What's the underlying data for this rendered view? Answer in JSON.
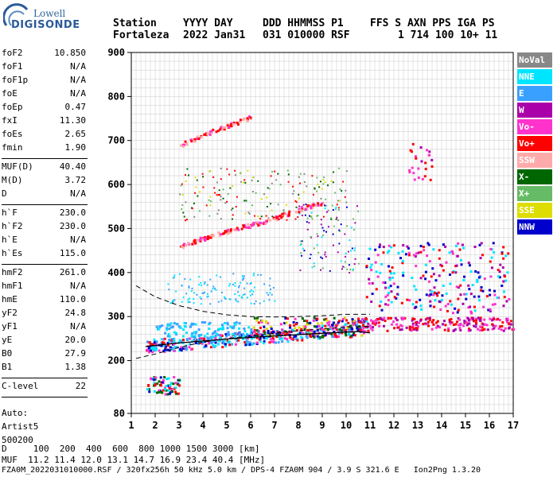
{
  "logo": {
    "line1": "Lowell",
    "line2": "DIGISONDE"
  },
  "header": {
    "labels": [
      "Station",
      "YYYY DAY",
      "DDD HHMMSS P1",
      "FFS S AXN PPS IGA PS"
    ],
    "values": [
      "Fortaleza",
      "2022 Jan31",
      "031 010000 RSF",
      "1 714 100 10+ 11"
    ]
  },
  "params_a": [
    {
      "k": "foF2",
      "v": "10.850"
    },
    {
      "k": "foF1",
      "v": "N/A"
    },
    {
      "k": "foF1p",
      "v": "N/A"
    },
    {
      "k": "foE",
      "v": "N/A"
    },
    {
      "k": "foEp",
      "v": "0.47"
    },
    {
      "k": "fxI",
      "v": "11.30"
    },
    {
      "k": "foEs",
      "v": "2.65"
    },
    {
      "k": "fmin",
      "v": "1.90"
    }
  ],
  "params_b": [
    {
      "k": "MUF(D)",
      "v": "40.40"
    },
    {
      "k": "M(D)",
      "v": "3.72"
    },
    {
      "k": "D",
      "v": "N/A"
    }
  ],
  "params_c": [
    {
      "k": "h`F",
      "v": "230.0"
    },
    {
      "k": "h`F2",
      "v": "230.0"
    },
    {
      "k": "h`E",
      "v": "N/A"
    },
    {
      "k": "h`Es",
      "v": "115.0"
    }
  ],
  "params_d": [
    {
      "k": "hmF2",
      "v": "261.0"
    },
    {
      "k": "hmF1",
      "v": "N/A"
    },
    {
      "k": "hmE",
      "v": "110.0"
    },
    {
      "k": "yF2",
      "v": "24.8"
    },
    {
      "k": "yF1",
      "v": "N/A"
    },
    {
      "k": "yE",
      "v": "20.0"
    },
    {
      "k": "B0",
      "v": "27.9"
    },
    {
      "k": "B1",
      "v": "1.38"
    }
  ],
  "params_e": [
    {
      "k": "C-level",
      "v": "22"
    }
  ],
  "auto": [
    "Auto:",
    "Artist5",
    "500200"
  ],
  "legend": [
    {
      "label": "NoVal",
      "color": "#888888"
    },
    {
      "label": "NNE",
      "color": "#00e5ff"
    },
    {
      "label": "E",
      "color": "#3aa0ff"
    },
    {
      "label": "W",
      "color": "#aa00aa"
    },
    {
      "label": "Vo-",
      "color": "#ff33cc"
    },
    {
      "label": "Vo+",
      "color": "#ff0000"
    },
    {
      "label": "SSW",
      "color": "#ffaaaa"
    },
    {
      "label": "X-",
      "color": "#006600"
    },
    {
      "label": "X+",
      "color": "#66bb66"
    },
    {
      "label": "SSE",
      "color": "#dddd00"
    },
    {
      "label": "NNW",
      "color": "#0000cc"
    }
  ],
  "bottom": {
    "d_row": "D     100  200  400  600  800 1000 1500 3000 [km]",
    "muf_row": "MUF  11.2 11.4 12.0 13.1 14.7 16.9 23.4 40.4 [MHz]",
    "footer": "FZA0M_2022031010000.RSF / 320fx256h 50 kHz 5.0 km / DPS-4 FZA0M 904 / 3.9 S 321.6 E   Ion2Png 1.3.20"
  },
  "chart_data": {
    "type": "scatter",
    "xlabel": "",
    "ylabel": "",
    "xlim": [
      1,
      17
    ],
    "ylim": [
      80,
      900
    ],
    "x_ticks": [
      1,
      2,
      3,
      4,
      5,
      6,
      7,
      8,
      9,
      10,
      11,
      12,
      13,
      14,
      15,
      16,
      17
    ],
    "y_ticks": [
      80,
      200,
      300,
      400,
      500,
      600,
      700,
      800,
      900
    ],
    "grid": true,
    "traces": [
      {
        "name": "O-trace F2",
        "points": [
          [
            1.6,
            232
          ],
          [
            2,
            236
          ],
          [
            3,
            240
          ],
          [
            4,
            244
          ],
          [
            5,
            249
          ],
          [
            6,
            254
          ],
          [
            7,
            258
          ],
          [
            8,
            262
          ],
          [
            9,
            268
          ],
          [
            10,
            274
          ],
          [
            10.85,
            285
          ]
        ]
      },
      {
        "name": "Es",
        "points": [
          [
            1.6,
            130
          ],
          [
            2.2,
            132
          ],
          [
            2.65,
            135
          ]
        ]
      },
      {
        "name": "upper echo",
        "points": [
          [
            3,
            690
          ],
          [
            4,
            715
          ],
          [
            5,
            735
          ],
          [
            6,
            755
          ]
        ]
      },
      {
        "name": "multi",
        "points": [
          [
            3,
            460
          ],
          [
            4,
            480
          ],
          [
            5,
            495
          ],
          [
            6,
            510
          ],
          [
            7,
            525
          ],
          [
            8,
            545
          ],
          [
            9,
            560
          ]
        ]
      }
    ],
    "model_curves": [
      {
        "name": "dashed-high",
        "points": [
          [
            1.2,
            370
          ],
          [
            2,
            345
          ],
          [
            3,
            325
          ],
          [
            4,
            312
          ],
          [
            5,
            304
          ],
          [
            6,
            300
          ],
          [
            7,
            299
          ],
          [
            8,
            300
          ],
          [
            9,
            302
          ],
          [
            10,
            305
          ],
          [
            11,
            305
          ]
        ]
      },
      {
        "name": "dashed-low",
        "points": [
          [
            1.2,
            205
          ],
          [
            2,
            215
          ],
          [
            3,
            230
          ],
          [
            4,
            242
          ],
          [
            5,
            250
          ],
          [
            6,
            256
          ],
          [
            7,
            262
          ],
          [
            8,
            268
          ],
          [
            9,
            272
          ],
          [
            10,
            276
          ],
          [
            11,
            278
          ]
        ]
      },
      {
        "name": "profile",
        "points": [
          [
            1.6,
            232
          ],
          [
            3,
            240
          ],
          [
            5,
            249
          ],
          [
            7,
            256
          ],
          [
            9,
            262
          ],
          [
            10.5,
            266
          ],
          [
            11,
            263
          ]
        ]
      }
    ]
  }
}
